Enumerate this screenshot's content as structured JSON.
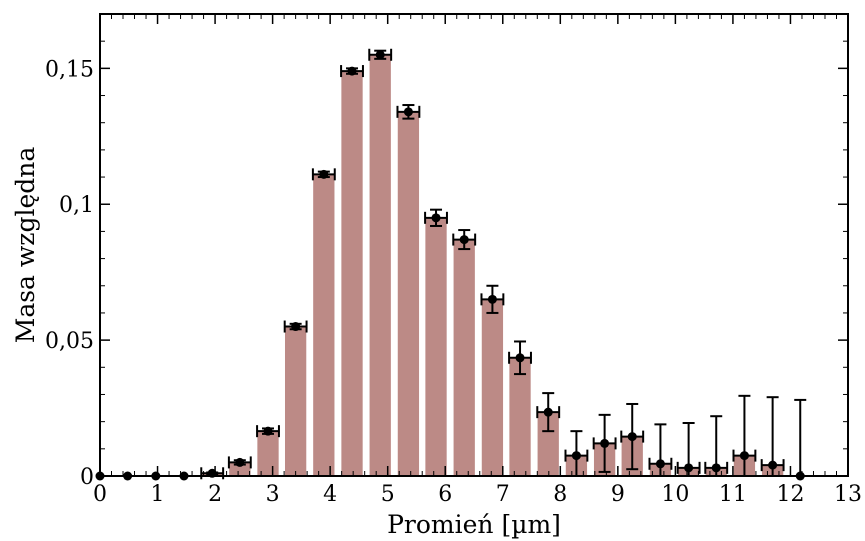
{
  "chart_data": {
    "type": "bar",
    "title": "",
    "xlabel": "Promień [µm]",
    "ylabel": "Masa względna",
    "xlim": [
      0,
      13
    ],
    "ylim": [
      0,
      0.17
    ],
    "x_ticks": [
      0,
      1,
      2,
      3,
      4,
      5,
      6,
      7,
      8,
      9,
      10,
      11,
      12,
      13
    ],
    "x_tick_labels": [
      "0",
      "1",
      "2",
      "3",
      "4",
      "5",
      "6",
      "7",
      "8",
      "9",
      "10",
      "11",
      "12",
      "13"
    ],
    "y_ticks": [
      0,
      0.05,
      0.1,
      0.15
    ],
    "y_tick_labels": [
      "0",
      "0,05",
      "0,1",
      "0,15"
    ],
    "grid": false,
    "legend": "none",
    "bar_color": "#bc8a86",
    "marker_color": "#000000",
    "bar_width": 0.37,
    "x_error": 0.19,
    "series": [
      {
        "x": [
          0.0,
          0.48,
          0.97,
          1.46,
          1.95,
          2.43,
          2.92,
          3.4,
          3.89,
          4.38,
          4.87,
          5.36,
          5.84,
          6.33,
          6.82,
          7.3,
          7.79,
          8.28,
          8.77,
          9.25,
          9.74,
          10.23,
          10.71,
          11.2,
          11.69,
          12.17
        ],
        "values": [
          0.0,
          0.0,
          0.0,
          0.0,
          0.001,
          0.005,
          0.0165,
          0.055,
          0.111,
          0.149,
          0.155,
          0.134,
          0.095,
          0.087,
          0.065,
          0.0435,
          0.0235,
          0.0075,
          0.012,
          0.0145,
          0.0045,
          0.003,
          0.003,
          0.0075,
          0.004,
          0.0
        ],
        "y_error": [
          0.0,
          0.0,
          0.0,
          0.0,
          0.0003,
          0.0008,
          0.001,
          0.001,
          0.001,
          0.001,
          0.0015,
          0.0025,
          0.003,
          0.0035,
          0.005,
          0.006,
          0.007,
          0.009,
          0.0105,
          0.012,
          0.0145,
          0.0165,
          0.019,
          0.022,
          0.025,
          0.028
        ]
      }
    ]
  }
}
